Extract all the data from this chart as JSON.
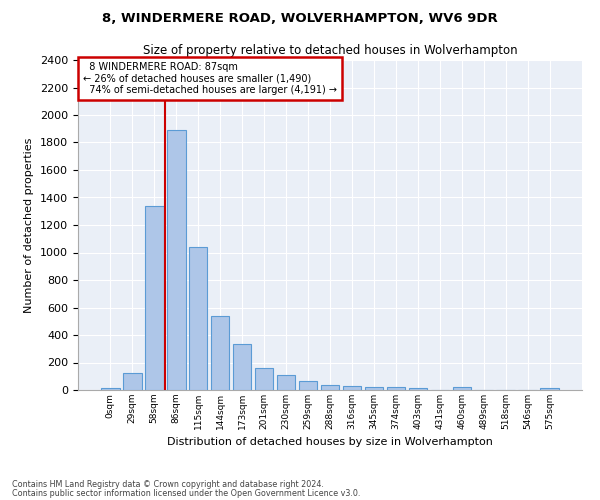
{
  "title1": "8, WINDERMERE ROAD, WOLVERHAMPTON, WV6 9DR",
  "title2": "Size of property relative to detached houses in Wolverhampton",
  "xlabel": "Distribution of detached houses by size in Wolverhampton",
  "ylabel": "Number of detached properties",
  "footer1": "Contains HM Land Registry data © Crown copyright and database right 2024.",
  "footer2": "Contains public sector information licensed under the Open Government Licence v3.0.",
  "bin_labels": [
    "0sqm",
    "29sqm",
    "58sqm",
    "86sqm",
    "115sqm",
    "144sqm",
    "173sqm",
    "201sqm",
    "230sqm",
    "259sqm",
    "288sqm",
    "316sqm",
    "345sqm",
    "374sqm",
    "403sqm",
    "431sqm",
    "460sqm",
    "489sqm",
    "518sqm",
    "546sqm",
    "575sqm"
  ],
  "bar_values": [
    15,
    125,
    1340,
    1890,
    1040,
    540,
    335,
    160,
    110,
    65,
    40,
    30,
    25,
    20,
    15,
    0,
    25,
    0,
    0,
    0,
    15
  ],
  "bar_color": "#aec6e8",
  "bar_edge_color": "#5b9bd5",
  "bg_color": "#eaeff7",
  "grid_color": "#ffffff",
  "fig_bg_color": "#ffffff",
  "annotation_box_color": "#cc0000",
  "vline_color": "#cc0000",
  "property_label": "8 WINDERMERE ROAD: 87sqm",
  "pct_smaller": "26% of detached houses are smaller (1,490)",
  "pct_larger": "74% of semi-detached houses are larger (4,191)",
  "vline_x": 2.5,
  "ylim": [
    0,
    2400
  ],
  "yticks": [
    0,
    200,
    400,
    600,
    800,
    1000,
    1200,
    1400,
    1600,
    1800,
    2000,
    2200,
    2400
  ]
}
